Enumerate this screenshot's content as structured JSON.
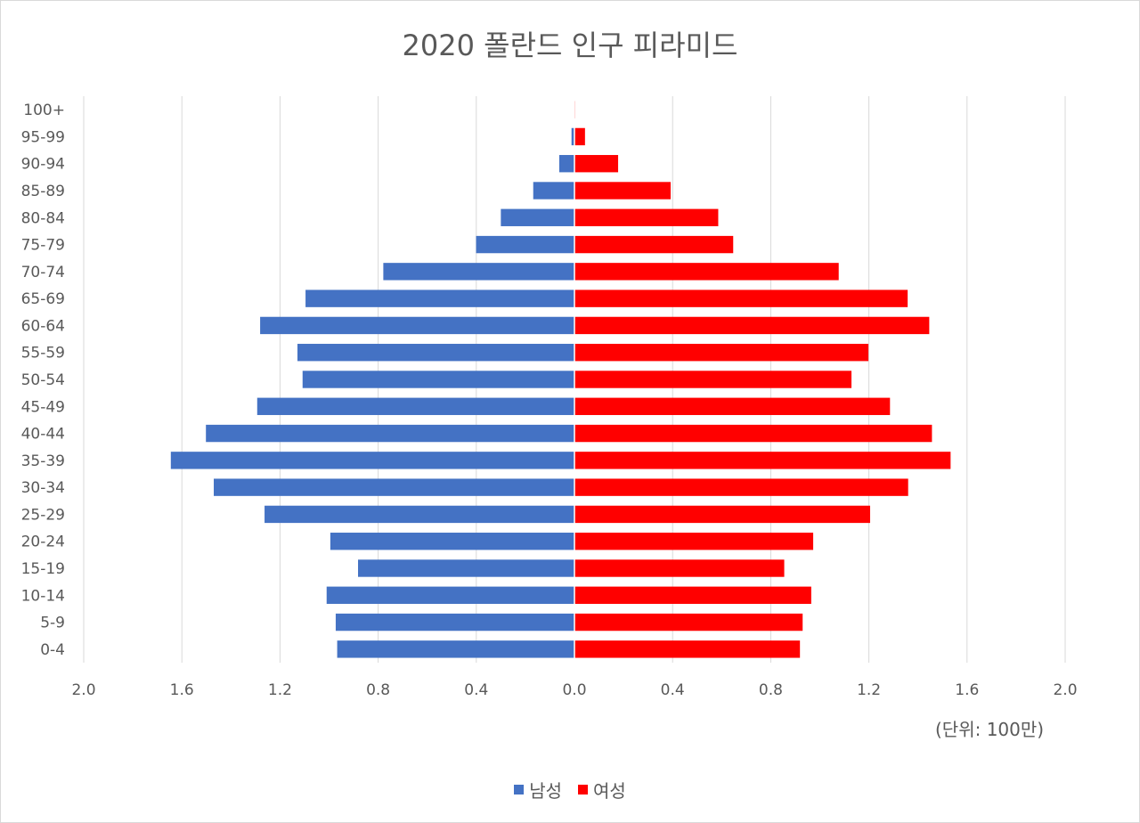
{
  "chart_data": {
    "type": "bar",
    "orientation": "horizontal-pyramid",
    "title": "2020 폴란드 인구 피라미드",
    "unit_label": "(단위: 100만)",
    "categories": [
      "0-4",
      "5-9",
      "10-14",
      "15-19",
      "20-24",
      "25-29",
      "30-34",
      "35-39",
      "40-44",
      "45-49",
      "50-54",
      "55-59",
      "60-64",
      "65-69",
      "70-74",
      "75-79",
      "80-84",
      "85-89",
      "90-94",
      "95-99",
      "100+"
    ],
    "series": [
      {
        "name": "남성",
        "color": "#4472c4",
        "values": [
          0.967,
          0.973,
          1.01,
          0.882,
          0.995,
          1.263,
          1.47,
          1.645,
          1.502,
          1.293,
          1.108,
          1.129,
          1.281,
          1.096,
          0.779,
          0.401,
          0.3,
          0.168,
          0.062,
          0.012,
          0.001
        ]
      },
      {
        "name": "여성",
        "color": "#ff0000",
        "values": [
          0.919,
          0.93,
          0.965,
          0.855,
          0.973,
          1.205,
          1.36,
          1.533,
          1.457,
          1.286,
          1.129,
          1.198,
          1.446,
          1.358,
          1.077,
          0.647,
          0.586,
          0.392,
          0.178,
          0.043,
          0.003
        ]
      }
    ],
    "x_ticks": [
      "2.0",
      "1.6",
      "1.2",
      "0.8",
      "0.4",
      "0.0",
      "0.4",
      "0.8",
      "1.2",
      "1.6",
      "2.0"
    ],
    "xlim": [
      -2.0,
      2.0
    ],
    "grid": true,
    "legend_position": "bottom"
  }
}
